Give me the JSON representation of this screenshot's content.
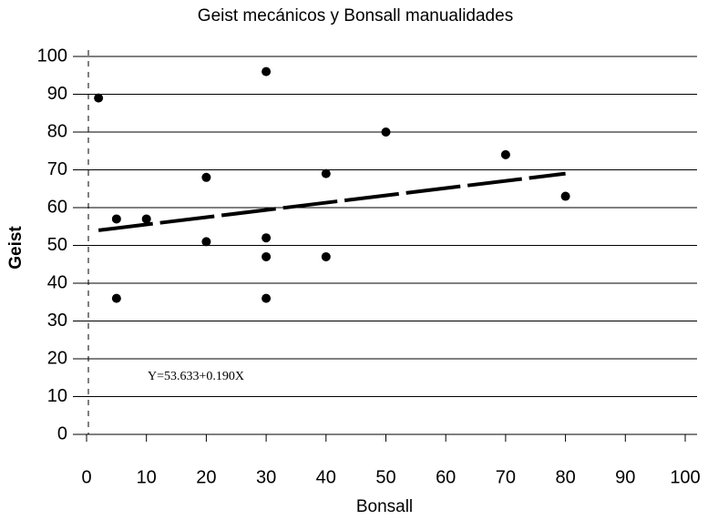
{
  "chart_data": {
    "type": "scatter",
    "title": "Geist mecánicos y Bonsall manualidades",
    "x_label": "Bonsall",
    "y_label": "Geist",
    "annotation": "Y=53.633+0.190X",
    "series": [
      {
        "color": "#000000",
        "x": [
          2,
          5,
          5,
          10,
          20,
          20,
          30,
          30,
          30,
          30,
          40,
          40,
          50,
          70,
          80
        ],
        "values": [
          89,
          57,
          36,
          57,
          68,
          51,
          96,
          52,
          47,
          36,
          69,
          47,
          80,
          74,
          63
        ]
      }
    ],
    "trendline": {
      "color": "#000000",
      "x": [
        2,
        80
      ],
      "values": [
        54,
        69
      ]
    },
    "xlim": [
      0,
      100
    ],
    "xticks": [
      0,
      10,
      20,
      30,
      40,
      50,
      60,
      70,
      80,
      90,
      100
    ],
    "ylim": [
      0,
      100
    ],
    "yticks": [
      0,
      10,
      20,
      30,
      40,
      50,
      60,
      70,
      80,
      90,
      100
    ],
    "grid": true
  }
}
